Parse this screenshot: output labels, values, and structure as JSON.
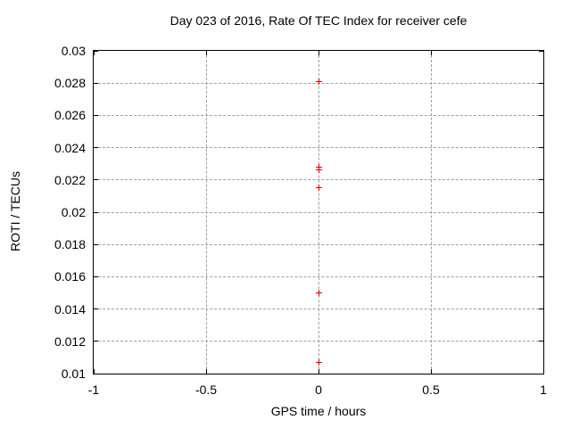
{
  "chart_data": {
    "type": "scatter",
    "title": "Day 023 of 2016, Rate Of TEC Index for receiver cefe",
    "xlabel": "GPS time / hours",
    "ylabel": "ROTI / TECUs",
    "xlim": [
      -1,
      1
    ],
    "ylim": [
      0.01,
      0.03
    ],
    "x_ticks": [
      "-1",
      "-0.5",
      "0",
      "0.5",
      "1"
    ],
    "y_ticks": [
      "0.01",
      "0.012",
      "0.014",
      "0.016",
      "0.018",
      "0.02",
      "0.022",
      "0.024",
      "0.026",
      "0.028",
      "0.03"
    ],
    "grid": true,
    "legend_position": "none",
    "series": [
      {
        "name": "ROTI",
        "marker": "plus",
        "color": "#e00000",
        "points": [
          {
            "x": 0,
            "y": 0.0281
          },
          {
            "x": 0,
            "y": 0.0228
          },
          {
            "x": 0,
            "y": 0.0226
          },
          {
            "x": 0,
            "y": 0.0215
          },
          {
            "x": 0,
            "y": 0.015
          },
          {
            "x": 0,
            "y": 0.0107
          }
        ]
      }
    ],
    "colors": {
      "background": "#ffffff",
      "axis_border": "#000000",
      "grid": "#9e9e9e",
      "text": "#000000",
      "marker": "#e00000"
    }
  }
}
